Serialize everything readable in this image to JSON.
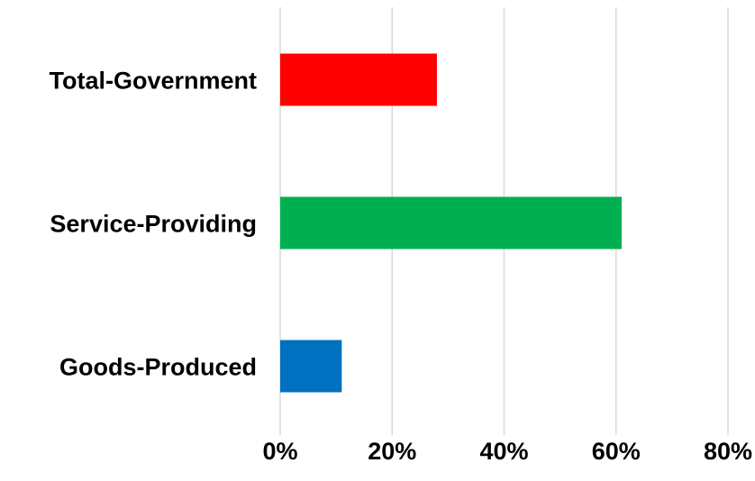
{
  "chart_data": {
    "type": "bar",
    "orientation": "horizontal",
    "title": "",
    "xlabel": "",
    "ylabel": "",
    "categories": [
      "Total-Government",
      "Service-Providing",
      "Goods-Produced"
    ],
    "values": [
      28,
      61,
      11
    ],
    "colors": [
      "#ff0000",
      "#00b050",
      "#0070c0"
    ],
    "xlim": [
      0,
      80
    ],
    "xticks": [
      0,
      20,
      40,
      60,
      80
    ],
    "xtick_labels": [
      "0%",
      "20%",
      "40%",
      "60%",
      "80%"
    ],
    "grid": true,
    "legend": "none"
  }
}
